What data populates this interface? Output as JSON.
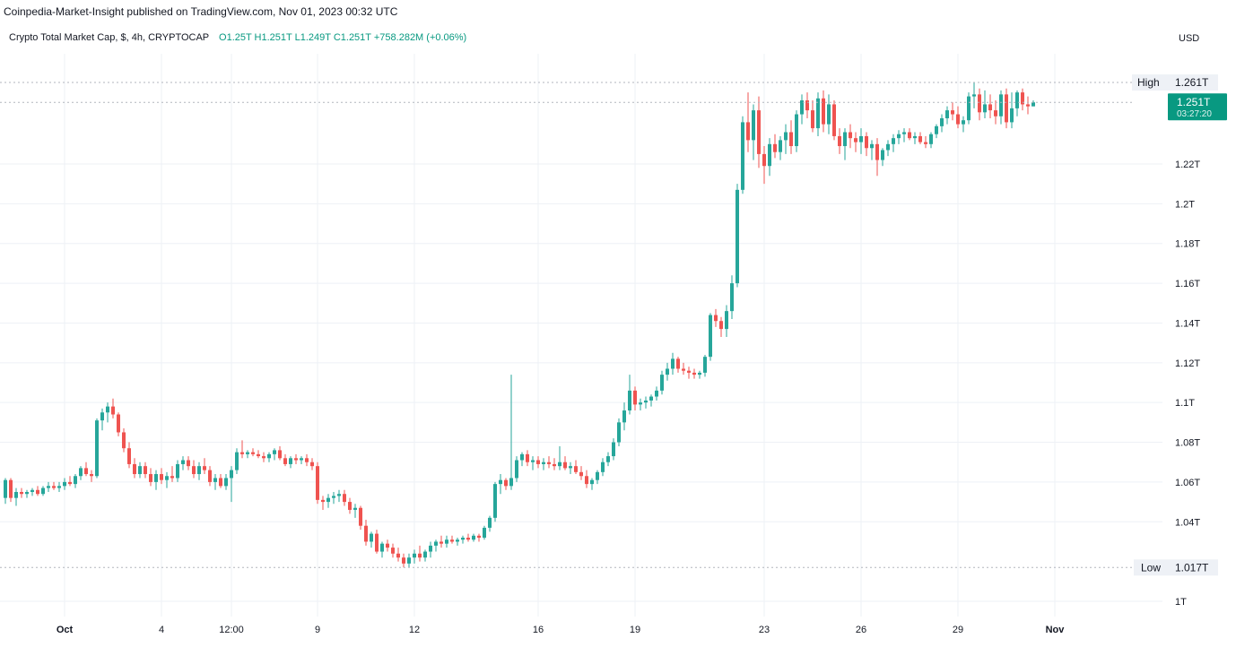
{
  "header": {
    "attribution": "Coinpedia-Market-Insight published on TradingView.com, Nov 01, 2023 00:32 UTC",
    "symbol": "Crypto Total Market Cap, $, 4h, CRYPTOCAP",
    "ohlc": "O1.25T  H1.251T  L1.249T  C1.251T  +758.282M (+0.06%)",
    "currency": "USD"
  },
  "price_axis": {
    "high_label": "High",
    "high_value": "1.261T",
    "low_label": "Low",
    "low_value": "1.017T",
    "last_price": "1.251T",
    "countdown": "03:27:20"
  },
  "colors": {
    "up": "#26a69a",
    "down": "#ef5350",
    "grid": "#eef1f6",
    "text": "#131722",
    "last_price_bg": "#089981",
    "dashed": "#b2b5be"
  },
  "chart_data": {
    "type": "candlestick",
    "title": "Crypto Total Market Cap, $, 4h, CRYPTOCAP",
    "ylabel": "",
    "xlabel": "",
    "y_unit": "T (USD trillions)",
    "ylim": [
      0.995,
      1.285
    ],
    "y_ticks": [
      1.0,
      1.04,
      1.06,
      1.08,
      1.1,
      1.12,
      1.14,
      1.16,
      1.18,
      1.2,
      1.22
    ],
    "y_tick_labels": [
      "1T",
      "1.04T",
      "1.06T",
      "1.08T",
      "1.1T",
      "1.12T",
      "1.14T",
      "1.16T",
      "1.18T",
      "1.2T",
      "1.22T"
    ],
    "x_tick_labels": [
      {
        "label": "Oct",
        "index": 11
      },
      {
        "label": "4",
        "index": 29
      },
      {
        "label": "12:00",
        "index": 42
      },
      {
        "label": "9",
        "index": 58
      },
      {
        "label": "12",
        "index": 76
      },
      {
        "label": "16",
        "index": 99
      },
      {
        "label": "19",
        "index": 117
      },
      {
        "label": "23",
        "index": 141
      },
      {
        "label": "26",
        "index": 159
      },
      {
        "label": "29",
        "index": 177
      },
      {
        "label": "Nov",
        "index": 195
      }
    ],
    "grid": true,
    "high": 1.261,
    "low": 1.017,
    "last": 1.251,
    "ohlc": [
      [
        1.052,
        1.062,
        1.049,
        1.061
      ],
      [
        1.061,
        1.062,
        1.05,
        1.052
      ],
      [
        1.052,
        1.057,
        1.048,
        1.055
      ],
      [
        1.055,
        1.057,
        1.052,
        1.054
      ],
      [
        1.054,
        1.056,
        1.052,
        1.055
      ],
      [
        1.055,
        1.057,
        1.053,
        1.056
      ],
      [
        1.056,
        1.058,
        1.053,
        1.054
      ],
      [
        1.054,
        1.058,
        1.053,
        1.057
      ],
      [
        1.057,
        1.06,
        1.055,
        1.058
      ],
      [
        1.058,
        1.06,
        1.056,
        1.057
      ],
      [
        1.057,
        1.06,
        1.055,
        1.058
      ],
      [
        1.058,
        1.062,
        1.056,
        1.06
      ],
      [
        1.06,
        1.063,
        1.058,
        1.059
      ],
      [
        1.059,
        1.064,
        1.057,
        1.063
      ],
      [
        1.063,
        1.068,
        1.061,
        1.067
      ],
      [
        1.067,
        1.07,
        1.063,
        1.064
      ],
      [
        1.064,
        1.066,
        1.06,
        1.063
      ],
      [
        1.063,
        1.092,
        1.062,
        1.091
      ],
      [
        1.091,
        1.097,
        1.086,
        1.095
      ],
      [
        1.095,
        1.1,
        1.09,
        1.098
      ],
      [
        1.098,
        1.102,
        1.092,
        1.094
      ],
      [
        1.094,
        1.095,
        1.083,
        1.085
      ],
      [
        1.085,
        1.087,
        1.075,
        1.077
      ],
      [
        1.077,
        1.08,
        1.067,
        1.069
      ],
      [
        1.069,
        1.072,
        1.062,
        1.064
      ],
      [
        1.064,
        1.07,
        1.062,
        1.068
      ],
      [
        1.068,
        1.07,
        1.062,
        1.064
      ],
      [
        1.064,
        1.067,
        1.058,
        1.06
      ],
      [
        1.06,
        1.066,
        1.056,
        1.064
      ],
      [
        1.064,
        1.067,
        1.059,
        1.061
      ],
      [
        1.061,
        1.065,
        1.057,
        1.063
      ],
      [
        1.063,
        1.068,
        1.06,
        1.062
      ],
      [
        1.062,
        1.071,
        1.06,
        1.069
      ],
      [
        1.069,
        1.073,
        1.066,
        1.071
      ],
      [
        1.071,
        1.073,
        1.066,
        1.068
      ],
      [
        1.068,
        1.071,
        1.062,
        1.064
      ],
      [
        1.064,
        1.07,
        1.061,
        1.068
      ],
      [
        1.068,
        1.072,
        1.064,
        1.066
      ],
      [
        1.066,
        1.068,
        1.058,
        1.06
      ],
      [
        1.06,
        1.064,
        1.056,
        1.062
      ],
      [
        1.062,
        1.064,
        1.057,
        1.058
      ],
      [
        1.058,
        1.064,
        1.056,
        1.062
      ],
      [
        1.062,
        1.068,
        1.05,
        1.066
      ],
      [
        1.066,
        1.077,
        1.064,
        1.075
      ],
      [
        1.075,
        1.081,
        1.072,
        1.074
      ],
      [
        1.074,
        1.076,
        1.072,
        1.075
      ],
      [
        1.075,
        1.077,
        1.073,
        1.074
      ],
      [
        1.074,
        1.076,
        1.072,
        1.073
      ],
      [
        1.073,
        1.075,
        1.07,
        1.072
      ],
      [
        1.072,
        1.075,
        1.07,
        1.074
      ],
      [
        1.074,
        1.077,
        1.071,
        1.076
      ],
      [
        1.076,
        1.078,
        1.071,
        1.072
      ],
      [
        1.072,
        1.074,
        1.068,
        1.069
      ],
      [
        1.069,
        1.073,
        1.067,
        1.072
      ],
      [
        1.072,
        1.074,
        1.069,
        1.071
      ],
      [
        1.071,
        1.073,
        1.069,
        1.072
      ],
      [
        1.072,
        1.074,
        1.068,
        1.07
      ],
      [
        1.07,
        1.072,
        1.066,
        1.068
      ],
      [
        1.068,
        1.07,
        1.049,
        1.051
      ],
      [
        1.051,
        1.053,
        1.046,
        1.05
      ],
      [
        1.05,
        1.054,
        1.047,
        1.052
      ],
      [
        1.052,
        1.055,
        1.049,
        1.053
      ],
      [
        1.053,
        1.056,
        1.05,
        1.054
      ],
      [
        1.054,
        1.056,
        1.048,
        1.05
      ],
      [
        1.05,
        1.052,
        1.044,
        1.046
      ],
      [
        1.046,
        1.049,
        1.042,
        1.047
      ],
      [
        1.047,
        1.048,
        1.036,
        1.038
      ],
      [
        1.038,
        1.041,
        1.028,
        1.03
      ],
      [
        1.03,
        1.035,
        1.027,
        1.034
      ],
      [
        1.034,
        1.036,
        1.024,
        1.025
      ],
      [
        1.025,
        1.03,
        1.022,
        1.029
      ],
      [
        1.029,
        1.031,
        1.025,
        1.027
      ],
      [
        1.027,
        1.029,
        1.022,
        1.024
      ],
      [
        1.024,
        1.027,
        1.02,
        1.022
      ],
      [
        1.022,
        1.024,
        1.017,
        1.019
      ],
      [
        1.019,
        1.024,
        1.017,
        1.022
      ],
      [
        1.022,
        1.026,
        1.019,
        1.024
      ],
      [
        1.024,
        1.028,
        1.02,
        1.022
      ],
      [
        1.022,
        1.026,
        1.02,
        1.025
      ],
      [
        1.025,
        1.03,
        1.022,
        1.028
      ],
      [
        1.028,
        1.031,
        1.025,
        1.03
      ],
      [
        1.03,
        1.033,
        1.027,
        1.029
      ],
      [
        1.029,
        1.033,
        1.027,
        1.031
      ],
      [
        1.031,
        1.033,
        1.029,
        1.03
      ],
      [
        1.03,
        1.032,
        1.028,
        1.031
      ],
      [
        1.031,
        1.033,
        1.029,
        1.032
      ],
      [
        1.032,
        1.034,
        1.03,
        1.031
      ],
      [
        1.031,
        1.034,
        1.03,
        1.033
      ],
      [
        1.033,
        1.034,
        1.03,
        1.032
      ],
      [
        1.032,
        1.038,
        1.031,
        1.037
      ],
      [
        1.037,
        1.043,
        1.035,
        1.042
      ],
      [
        1.042,
        1.06,
        1.04,
        1.059
      ],
      [
        1.059,
        1.064,
        1.054,
        1.061
      ],
      [
        1.061,
        1.062,
        1.056,
        1.058
      ],
      [
        1.058,
        1.114,
        1.056,
        1.062
      ],
      [
        1.062,
        1.073,
        1.06,
        1.071
      ],
      [
        1.071,
        1.075,
        1.068,
        1.074
      ],
      [
        1.074,
        1.076,
        1.068,
        1.07
      ],
      [
        1.07,
        1.073,
        1.066,
        1.071
      ],
      [
        1.071,
        1.073,
        1.067,
        1.069
      ],
      [
        1.069,
        1.072,
        1.066,
        1.07
      ],
      [
        1.07,
        1.073,
        1.067,
        1.069
      ],
      [
        1.069,
        1.072,
        1.066,
        1.068
      ],
      [
        1.068,
        1.078,
        1.066,
        1.07
      ],
      [
        1.07,
        1.073,
        1.066,
        1.067
      ],
      [
        1.067,
        1.07,
        1.064,
        1.068
      ],
      [
        1.068,
        1.071,
        1.064,
        1.065
      ],
      [
        1.065,
        1.068,
        1.061,
        1.063
      ],
      [
        1.063,
        1.066,
        1.057,
        1.059
      ],
      [
        1.059,
        1.062,
        1.056,
        1.061
      ],
      [
        1.061,
        1.066,
        1.059,
        1.065
      ],
      [
        1.065,
        1.072,
        1.063,
        1.07
      ],
      [
        1.07,
        1.075,
        1.068,
        1.073
      ],
      [
        1.073,
        1.082,
        1.071,
        1.08
      ],
      [
        1.08,
        1.092,
        1.078,
        1.09
      ],
      [
        1.09,
        1.1,
        1.086,
        1.096
      ],
      [
        1.096,
        1.114,
        1.094,
        1.106
      ],
      [
        1.106,
        1.108,
        1.096,
        1.099
      ],
      [
        1.099,
        1.102,
        1.096,
        1.1
      ],
      [
        1.1,
        1.103,
        1.097,
        1.101
      ],
      [
        1.101,
        1.104,
        1.098,
        1.103
      ],
      [
        1.103,
        1.108,
        1.101,
        1.106
      ],
      [
        1.106,
        1.116,
        1.104,
        1.114
      ],
      [
        1.114,
        1.12,
        1.111,
        1.117
      ],
      [
        1.117,
        1.125,
        1.114,
        1.122
      ],
      [
        1.122,
        1.123,
        1.115,
        1.117
      ],
      [
        1.117,
        1.12,
        1.114,
        1.116
      ],
      [
        1.116,
        1.118,
        1.112,
        1.115
      ],
      [
        1.115,
        1.117,
        1.112,
        1.114
      ],
      [
        1.114,
        1.116,
        1.112,
        1.115
      ],
      [
        1.115,
        1.124,
        1.113,
        1.123
      ],
      [
        1.123,
        1.145,
        1.121,
        1.144
      ],
      [
        1.144,
        1.147,
        1.138,
        1.141
      ],
      [
        1.141,
        1.143,
        1.133,
        1.137
      ],
      [
        1.137,
        1.149,
        1.133,
        1.146
      ],
      [
        1.146,
        1.164,
        1.142,
        1.16
      ],
      [
        1.16,
        1.21,
        1.158,
        1.207
      ],
      [
        1.207,
        1.244,
        1.205,
        1.241
      ],
      [
        1.241,
        1.256,
        1.226,
        1.232
      ],
      [
        1.232,
        1.25,
        1.222,
        1.247
      ],
      [
        1.247,
        1.254,
        1.218,
        1.225
      ],
      [
        1.225,
        1.229,
        1.21,
        1.219
      ],
      [
        1.219,
        1.233,
        1.214,
        1.23
      ],
      [
        1.23,
        1.235,
        1.223,
        1.226
      ],
      [
        1.226,
        1.234,
        1.222,
        1.232
      ],
      [
        1.232,
        1.24,
        1.225,
        1.236
      ],
      [
        1.236,
        1.242,
        1.225,
        1.229
      ],
      [
        1.229,
        1.247,
        1.226,
        1.245
      ],
      [
        1.245,
        1.255,
        1.24,
        1.252
      ],
      [
        1.252,
        1.256,
        1.243,
        1.247
      ],
      [
        1.247,
        1.252,
        1.236,
        1.238
      ],
      [
        1.238,
        1.256,
        1.234,
        1.253
      ],
      [
        1.253,
        1.257,
        1.236,
        1.24
      ],
      [
        1.24,
        1.255,
        1.235,
        1.25
      ],
      [
        1.25,
        1.252,
        1.232,
        1.234
      ],
      [
        1.234,
        1.238,
        1.225,
        1.229
      ],
      [
        1.229,
        1.238,
        1.222,
        1.236
      ],
      [
        1.236,
        1.24,
        1.228,
        1.233
      ],
      [
        1.233,
        1.236,
        1.226,
        1.231
      ],
      [
        1.231,
        1.238,
        1.225,
        1.234
      ],
      [
        1.234,
        1.236,
        1.224,
        1.228
      ],
      [
        1.228,
        1.232,
        1.222,
        1.23
      ],
      [
        1.23,
        1.233,
        1.214,
        1.222
      ],
      [
        1.222,
        1.228,
        1.219,
        1.227
      ],
      [
        1.227,
        1.232,
        1.224,
        1.23
      ],
      [
        1.23,
        1.235,
        1.226,
        1.233
      ],
      [
        1.233,
        1.237,
        1.23,
        1.235
      ],
      [
        1.235,
        1.238,
        1.231,
        1.236
      ],
      [
        1.236,
        1.238,
        1.232,
        1.233
      ],
      [
        1.233,
        1.236,
        1.23,
        1.234
      ],
      [
        1.234,
        1.236,
        1.23,
        1.231
      ],
      [
        1.231,
        1.234,
        1.228,
        1.23
      ],
      [
        1.23,
        1.236,
        1.228,
        1.235
      ],
      [
        1.235,
        1.24,
        1.233,
        1.239
      ],
      [
        1.239,
        1.245,
        1.236,
        1.243
      ],
      [
        1.243,
        1.249,
        1.24,
        1.247
      ],
      [
        1.247,
        1.251,
        1.242,
        1.245
      ],
      [
        1.245,
        1.249,
        1.238,
        1.24
      ],
      [
        1.24,
        1.244,
        1.236,
        1.242
      ],
      [
        1.242,
        1.256,
        1.24,
        1.254
      ],
      [
        1.254,
        1.261,
        1.248,
        1.255
      ],
      [
        1.255,
        1.258,
        1.242,
        1.246
      ],
      [
        1.246,
        1.257,
        1.243,
        1.25
      ],
      [
        1.25,
        1.255,
        1.243,
        1.247
      ],
      [
        1.247,
        1.252,
        1.24,
        1.244
      ],
      [
        1.244,
        1.257,
        1.24,
        1.255
      ],
      [
        1.255,
        1.258,
        1.238,
        1.241
      ],
      [
        1.241,
        1.256,
        1.238,
        1.248
      ],
      [
        1.248,
        1.257,
        1.244,
        1.256
      ],
      [
        1.256,
        1.258,
        1.247,
        1.25
      ],
      [
        1.25,
        1.254,
        1.245,
        1.249
      ],
      [
        1.249,
        1.252,
        1.249,
        1.251
      ]
    ]
  }
}
